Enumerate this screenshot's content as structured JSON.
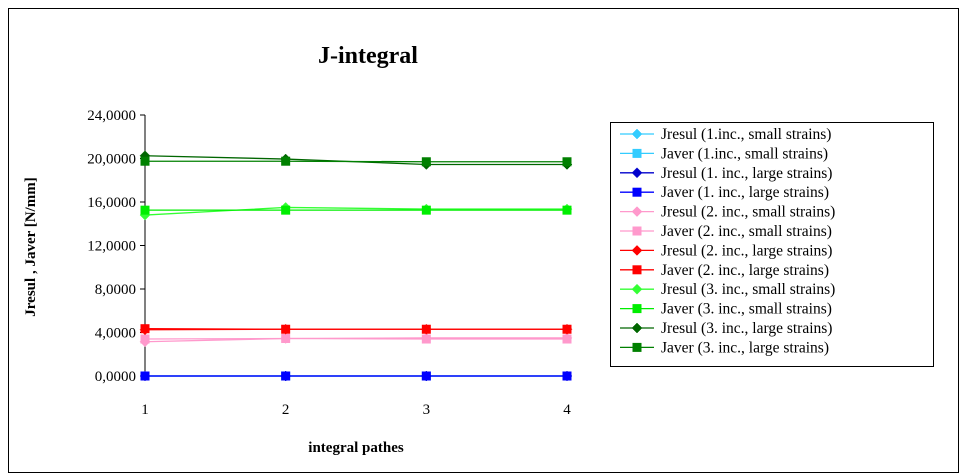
{
  "chart_data": {
    "type": "line",
    "title": "J-integral",
    "xlabel": "integral pathes",
    "ylabel": "Jresul , Javer [N/mm]",
    "categories": [
      "1",
      "2",
      "3",
      "4"
    ],
    "y_tick_labels": [
      "0,0000",
      "4,0000",
      "8,0000",
      "12,0000",
      "16,0000",
      "20,0000",
      "24,0000"
    ],
    "ylim": [
      0,
      24
    ],
    "grid": false,
    "legend_position": "right",
    "series": [
      {
        "name": "Jresul (1.inc., small strains)",
        "color": "#33CCFF",
        "marker": "diamond",
        "values": [
          0.0,
          0.0,
          0.0,
          0.0
        ]
      },
      {
        "name": "Javer (1.inc., small strains)",
        "color": "#33CCFF",
        "marker": "square",
        "values": [
          0.0,
          0.0,
          0.0,
          0.0
        ]
      },
      {
        "name": "Jresul (1. inc., large strains)",
        "color": "#0000CC",
        "marker": "diamond",
        "values": [
          0.0,
          0.0,
          0.0,
          0.0
        ]
      },
      {
        "name": "Javer (1. inc., large strains)",
        "color": "#0000FF",
        "marker": "square",
        "values": [
          0.0,
          0.0,
          0.0,
          0.0
        ]
      },
      {
        "name": "Jresul (2. inc., small strains)",
        "color": "#FF99CC",
        "marker": "diamond",
        "values": [
          3.15,
          3.45,
          3.5,
          3.5
        ]
      },
      {
        "name": "Javer (2. inc., small strains)",
        "color": "#FF99CC",
        "marker": "square",
        "values": [
          3.4,
          3.45,
          3.4,
          3.4
        ]
      },
      {
        "name": "Jresul (2. inc., large strains)",
        "color": "#FF0000",
        "marker": "diamond",
        "values": [
          4.25,
          4.3,
          4.3,
          4.3
        ]
      },
      {
        "name": "Javer (2. inc., large strains)",
        "color": "#FF0000",
        "marker": "square",
        "values": [
          4.35,
          4.3,
          4.3,
          4.3
        ]
      },
      {
        "name": "Jresul (3. inc., small strains)",
        "color": "#33FF33",
        "marker": "diamond",
        "values": [
          14.8,
          15.5,
          15.35,
          15.35
        ]
      },
      {
        "name": "Javer (3. inc., small strains)",
        "color": "#00EE00",
        "marker": "square",
        "values": [
          15.25,
          15.25,
          15.25,
          15.25
        ]
      },
      {
        "name": "Jresul (3. inc., large strains)",
        "color": "#006600",
        "marker": "diamond",
        "values": [
          20.25,
          19.95,
          19.45,
          19.45
        ]
      },
      {
        "name": "Javer (3. inc., large strains)",
        "color": "#008000",
        "marker": "square",
        "values": [
          19.75,
          19.75,
          19.7,
          19.7
        ]
      }
    ]
  }
}
